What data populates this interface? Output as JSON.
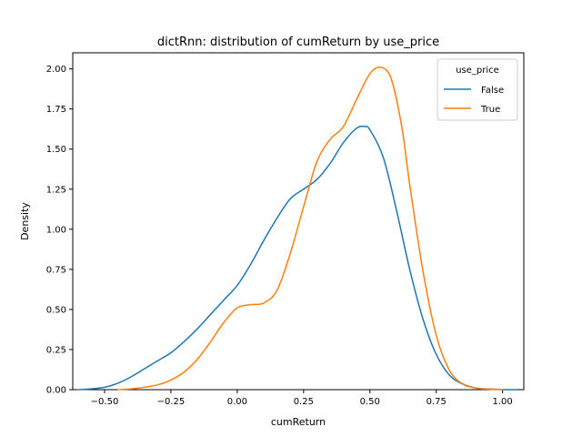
{
  "chart_data": {
    "type": "line",
    "title": "dictRnn: distribution of cumReturn by use_price",
    "xlabel": "cumReturn",
    "ylabel": "Density",
    "xlim": [
      -0.62,
      1.08
    ],
    "ylim": [
      0,
      2.1
    ],
    "xticks": [
      -0.5,
      -0.25,
      0.0,
      0.25,
      0.5,
      0.75,
      1.0
    ],
    "xtick_labels": [
      "−0.50",
      "−0.25",
      "0.00",
      "0.25",
      "0.50",
      "0.75",
      "1.00"
    ],
    "yticks": [
      0.0,
      0.25,
      0.5,
      0.75,
      1.0,
      1.25,
      1.5,
      1.75,
      2.0
    ],
    "ytick_labels": [
      "0.00",
      "0.25",
      "0.50",
      "0.75",
      "1.00",
      "1.25",
      "1.50",
      "1.75",
      "2.00"
    ],
    "grid": false,
    "legend": {
      "title": "use_price",
      "placement": "top-right"
    },
    "series": [
      {
        "name": "False",
        "color": "#1f77b4",
        "x": [
          -0.6,
          -0.55,
          -0.5,
          -0.45,
          -0.4,
          -0.35,
          -0.3,
          -0.25,
          -0.2,
          -0.15,
          -0.1,
          -0.05,
          0.0,
          0.05,
          0.1,
          0.15,
          0.2,
          0.25,
          0.3,
          0.35,
          0.4,
          0.45,
          0.48,
          0.5,
          0.55,
          0.6,
          0.65,
          0.7,
          0.75,
          0.8,
          0.85,
          0.9,
          0.95,
          1.0,
          1.05
        ],
        "y": [
          0.0,
          0.005,
          0.015,
          0.04,
          0.08,
          0.13,
          0.18,
          0.23,
          0.3,
          0.38,
          0.47,
          0.56,
          0.65,
          0.78,
          0.93,
          1.07,
          1.19,
          1.25,
          1.31,
          1.41,
          1.54,
          1.63,
          1.64,
          1.62,
          1.45,
          1.12,
          0.75,
          0.44,
          0.22,
          0.09,
          0.035,
          0.01,
          0.004,
          0.001,
          0.0
        ]
      },
      {
        "name": "True",
        "color": "#ff7f0e",
        "x": [
          -0.45,
          -0.4,
          -0.35,
          -0.3,
          -0.25,
          -0.2,
          -0.15,
          -0.1,
          -0.05,
          0.0,
          0.05,
          0.1,
          0.15,
          0.2,
          0.25,
          0.3,
          0.35,
          0.4,
          0.45,
          0.5,
          0.54,
          0.58,
          0.62,
          0.65,
          0.7,
          0.75,
          0.8,
          0.85,
          0.9,
          0.95,
          1.0
        ],
        "y": [
          0.0,
          0.005,
          0.015,
          0.03,
          0.06,
          0.11,
          0.19,
          0.3,
          0.42,
          0.51,
          0.53,
          0.54,
          0.62,
          0.85,
          1.14,
          1.42,
          1.56,
          1.64,
          1.81,
          1.97,
          2.01,
          1.94,
          1.64,
          1.28,
          0.74,
          0.34,
          0.12,
          0.035,
          0.01,
          0.003,
          0.0
        ]
      }
    ]
  }
}
